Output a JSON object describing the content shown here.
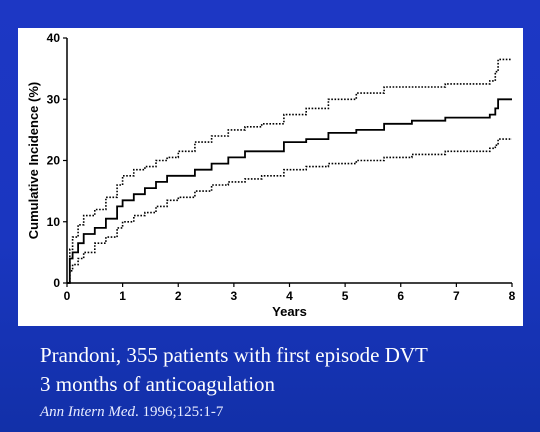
{
  "chart_data": {
    "type": "line",
    "title": "",
    "xlabel": "Years",
    "ylabel": "Cumulative Incidence (%)",
    "xlim": [
      0,
      8
    ],
    "ylim": [
      0,
      40
    ],
    "xticks": [
      0,
      1,
      2,
      3,
      4,
      5,
      6,
      7,
      8
    ],
    "yticks": [
      0,
      10,
      20,
      30,
      40
    ],
    "grid": false,
    "series": [
      {
        "style": "solid",
        "x": [
          0,
          0.05,
          0.1,
          0.2,
          0.3,
          0.5,
          0.7,
          0.9,
          1.0,
          1.2,
          1.4,
          1.6,
          1.8,
          2.0,
          2.3,
          2.6,
          2.9,
          3.2,
          3.5,
          3.9,
          4.3,
          4.7,
          5.2,
          5.7,
          6.2,
          6.8,
          7.3,
          7.6,
          7.7,
          7.75,
          8.0
        ],
        "y": [
          0,
          4.0,
          5.0,
          6.5,
          8.0,
          9.0,
          10.5,
          12.5,
          13.5,
          14.5,
          15.5,
          16.5,
          17.5,
          17.5,
          18.5,
          19.5,
          20.5,
          21.5,
          21.5,
          23.0,
          23.5,
          24.5,
          25.0,
          26.0,
          26.5,
          27.0,
          27.0,
          27.5,
          28.5,
          30.0,
          30.0
        ]
      },
      {
        "style": "dotted",
        "x": [
          0,
          0.05,
          0.1,
          0.2,
          0.3,
          0.5,
          0.7,
          0.9,
          1.0,
          1.2,
          1.4,
          1.6,
          1.8,
          2.0,
          2.3,
          2.6,
          2.9,
          3.2,
          3.5,
          3.9,
          4.3,
          4.7,
          5.2,
          5.7,
          6.2,
          6.8,
          7.3,
          7.6,
          7.7,
          7.75,
          8.0
        ],
        "y": [
          0,
          5.5,
          7.5,
          9.5,
          11.0,
          12.0,
          14.0,
          16.0,
          17.5,
          18.5,
          19.0,
          20.0,
          20.5,
          21.5,
          23.0,
          24.0,
          25.0,
          25.5,
          26.0,
          27.5,
          28.5,
          30.0,
          31.0,
          32.0,
          32.0,
          32.5,
          32.5,
          33.0,
          34.5,
          36.5,
          36.5
        ]
      },
      {
        "style": "dotted",
        "x": [
          0,
          0.05,
          0.1,
          0.2,
          0.3,
          0.5,
          0.7,
          0.9,
          1.0,
          1.2,
          1.4,
          1.6,
          1.8,
          2.0,
          2.3,
          2.6,
          2.9,
          3.2,
          3.5,
          3.9,
          4.3,
          4.7,
          5.2,
          5.7,
          6.2,
          6.8,
          7.3,
          7.6,
          7.7,
          7.75,
          8.0
        ],
        "y": [
          0,
          2.0,
          3.0,
          4.0,
          5.0,
          6.5,
          7.5,
          9.0,
          10.0,
          11.0,
          11.5,
          12.5,
          13.5,
          14.0,
          15.0,
          16.0,
          16.5,
          17.0,
          17.5,
          18.5,
          19.0,
          19.5,
          20.0,
          20.5,
          21.0,
          21.5,
          21.5,
          22.0,
          22.5,
          23.5,
          23.5
        ]
      }
    ]
  },
  "caption": {
    "line1": "Prandoni, 355 patients with first episode DVT",
    "line2": "3 months of anticoagulation",
    "citation_journal": "Ann Intern Med",
    "citation_rest": ".  1996;125:1-7"
  }
}
